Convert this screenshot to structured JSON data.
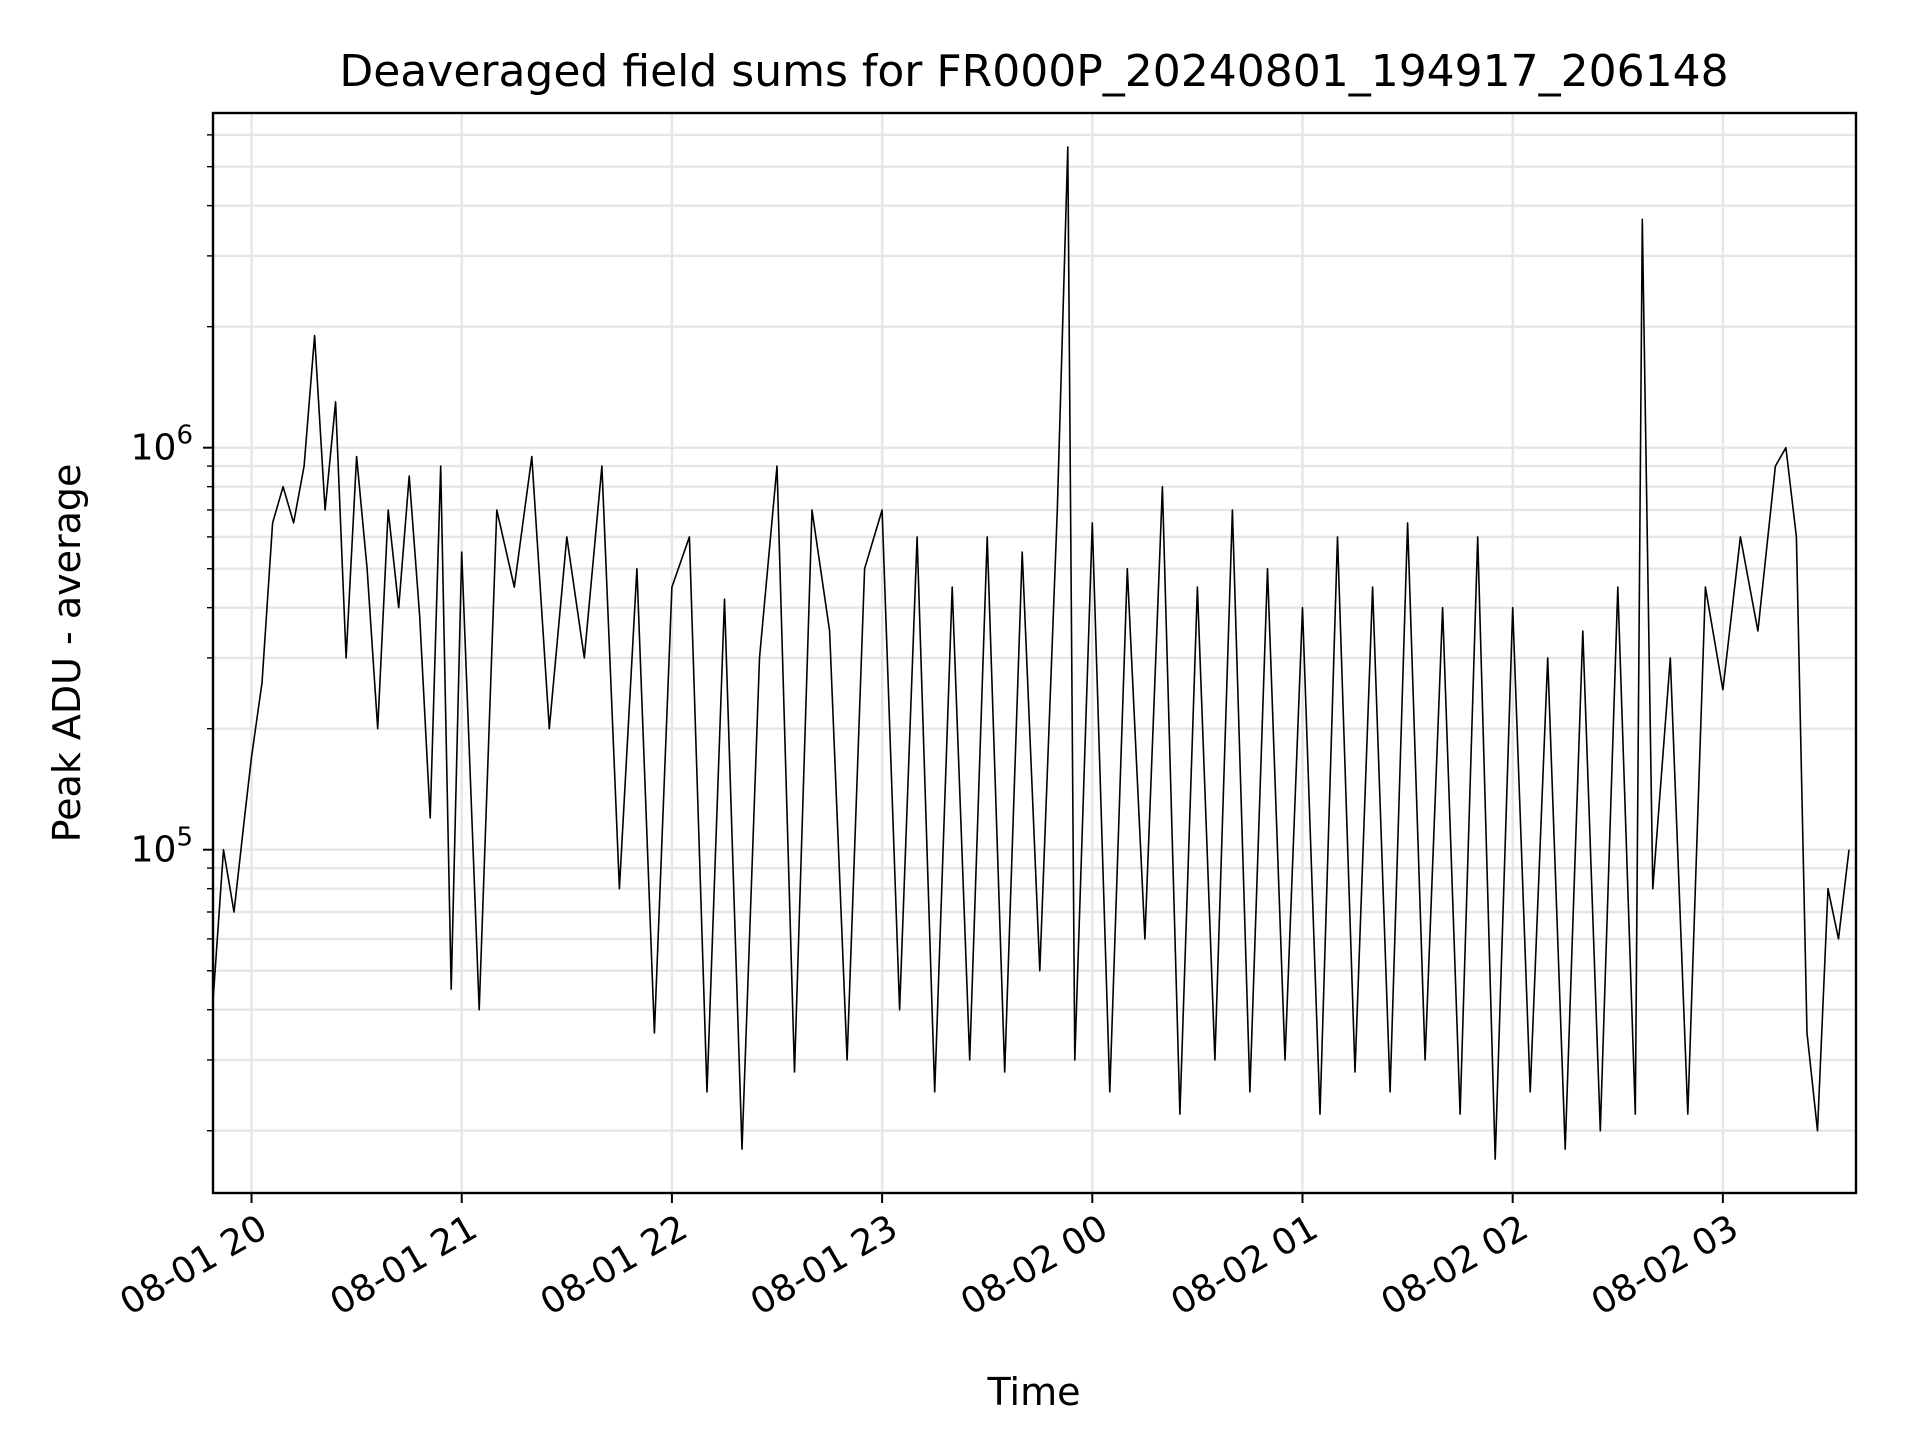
{
  "chart_data": {
    "type": "line",
    "title": "Deaveraged field sums for FR000P_20240801_194917_206148",
    "xlabel": "Time",
    "ylabel": "Peak ADU - average",
    "yscale": "log",
    "ylim": [
      14000,
      6800000
    ],
    "xlim": [
      "08-01 19:49",
      "08-02 03:38"
    ],
    "grid": true,
    "line_color": "#000000",
    "x_ticks": [
      "08-01 20",
      "08-01 21",
      "08-01 22",
      "08-01 23",
      "08-02 00",
      "08-02 01",
      "08-02 02",
      "08-02 03"
    ],
    "y_ticks": [
      {
        "base": "10",
        "exp": "5",
        "value": 100000
      },
      {
        "base": "10",
        "exp": "6",
        "value": 1000000
      }
    ],
    "series": [
      {
        "x": [
          "08-01 19:49",
          "08-01 19:52",
          "08-01 19:55",
          "08-01 19:58",
          "08-01 20:00",
          "08-01 20:03",
          "08-01 20:06",
          "08-01 20:09",
          "08-01 20:12",
          "08-01 20:15",
          "08-01 20:18",
          "08-01 20:21",
          "08-01 20:24",
          "08-01 20:27",
          "08-01 20:30",
          "08-01 20:33",
          "08-01 20:36",
          "08-01 20:39",
          "08-01 20:42",
          "08-01 20:45",
          "08-01 20:48",
          "08-01 20:51",
          "08-01 20:54",
          "08-01 20:57",
          "08-01 21:00",
          "08-01 21:05",
          "08-01 21:10",
          "08-01 21:15",
          "08-01 21:20",
          "08-01 21:25",
          "08-01 21:30",
          "08-01 21:35",
          "08-01 21:40",
          "08-01 21:45",
          "08-01 21:50",
          "08-01 21:55",
          "08-01 22:00",
          "08-01 22:05",
          "08-01 22:10",
          "08-01 22:15",
          "08-01 22:20",
          "08-01 22:25",
          "08-01 22:30",
          "08-01 22:35",
          "08-01 22:40",
          "08-01 22:45",
          "08-01 22:50",
          "08-01 22:55",
          "08-01 23:00",
          "08-01 23:05",
          "08-01 23:10",
          "08-01 23:15",
          "08-01 23:20",
          "08-01 23:25",
          "08-01 23:30",
          "08-01 23:35",
          "08-01 23:40",
          "08-01 23:45",
          "08-01 23:50",
          "08-01 23:53",
          "08-01 23:55",
          "08-02 00:00",
          "08-02 00:05",
          "08-02 00:10",
          "08-02 00:15",
          "08-02 00:20",
          "08-02 00:25",
          "08-02 00:30",
          "08-02 00:35",
          "08-02 00:40",
          "08-02 00:45",
          "08-02 00:50",
          "08-02 00:55",
          "08-02 01:00",
          "08-02 01:05",
          "08-02 01:10",
          "08-02 01:15",
          "08-02 01:20",
          "08-02 01:25",
          "08-02 01:30",
          "08-02 01:35",
          "08-02 01:40",
          "08-02 01:45",
          "08-02 01:50",
          "08-02 01:55",
          "08-02 02:00",
          "08-02 02:05",
          "08-02 02:10",
          "08-02 02:15",
          "08-02 02:20",
          "08-02 02:25",
          "08-02 02:30",
          "08-02 02:35",
          "08-02 02:37",
          "08-02 02:40",
          "08-02 02:45",
          "08-02 02:50",
          "08-02 02:55",
          "08-02 03:00",
          "08-02 03:05",
          "08-02 03:10",
          "08-02 03:15",
          "08-02 03:18",
          "08-02 03:21",
          "08-02 03:24",
          "08-02 03:27",
          "08-02 03:30",
          "08-02 03:33",
          "08-02 03:36"
        ],
        "values": [
          42000,
          100000,
          70000,
          120000,
          170000,
          260000,
          650000,
          800000,
          650000,
          900000,
          1900000,
          700000,
          1300000,
          300000,
          950000,
          500000,
          200000,
          700000,
          400000,
          850000,
          380000,
          120000,
          900000,
          45000,
          550000,
          40000,
          700000,
          450000,
          950000,
          200000,
          600000,
          300000,
          900000,
          80000,
          500000,
          35000,
          450000,
          600000,
          25000,
          420000,
          18000,
          300000,
          900000,
          28000,
          700000,
          350000,
          30000,
          500000,
          700000,
          40000,
          600000,
          25000,
          450000,
          30000,
          600000,
          28000,
          550000,
          50000,
          700000,
          5600000,
          30000,
          650000,
          25000,
          500000,
          60000,
          800000,
          22000,
          450000,
          30000,
          700000,
          25000,
          500000,
          30000,
          400000,
          22000,
          600000,
          28000,
          450000,
          25000,
          650000,
          30000,
          400000,
          22000,
          600000,
          17000,
          400000,
          25000,
          300000,
          18000,
          350000,
          20000,
          450000,
          22000,
          3700000,
          80000,
          300000,
          22000,
          450000,
          250000,
          600000,
          350000,
          900000,
          1000000,
          600000,
          35000,
          20000,
          80000,
          60000,
          100000
        ]
      }
    ]
  }
}
